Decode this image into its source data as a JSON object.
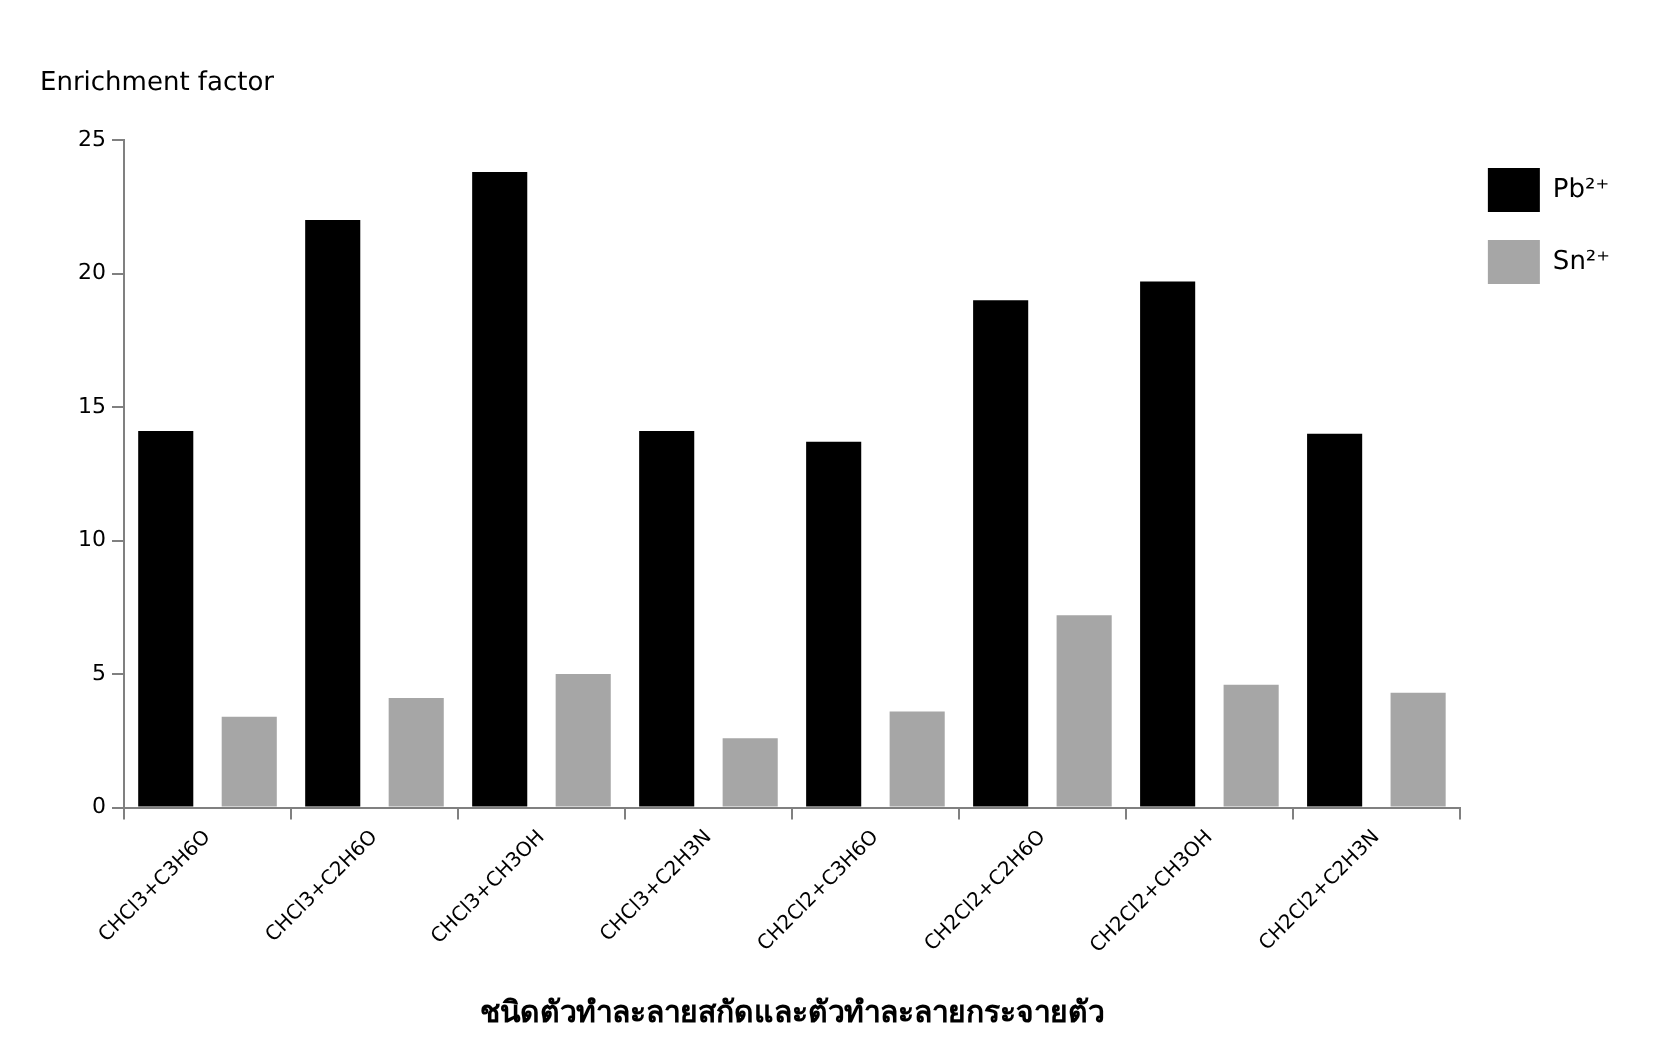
{
  "chart_data": {
    "type": "bar",
    "ylabel": "Enrichment factor",
    "xlabel": "ชนิดตัวทำละลายสกัดและตัวทำละลายกระจายตัว",
    "categories": [
      "CHCl3+C3H6O",
      "CHCl3+C2H6O",
      "CHCl3+CH3OH",
      "CHCl3+C2H3N",
      "CH2Cl2+C3H6O",
      "CH2Cl2+C2H6O",
      "CH2Cl2+CH3OH",
      "CH2Cl2+C2H3N"
    ],
    "series": [
      {
        "name": "Pb²⁺",
        "color": "#000000",
        "values": [
          14.1,
          22.0,
          23.8,
          14.1,
          13.7,
          19.0,
          19.7,
          14.0
        ]
      },
      {
        "name": "Sn²⁺",
        "color": "#a6a6a6",
        "values": [
          3.4,
          4.1,
          5.0,
          2.6,
          3.6,
          7.2,
          4.6,
          4.3
        ]
      }
    ],
    "ylim": [
      0,
      25
    ],
    "yticks": [
      0,
      5,
      10,
      15,
      20,
      25
    ],
    "grid": false,
    "legend": "top right"
  }
}
